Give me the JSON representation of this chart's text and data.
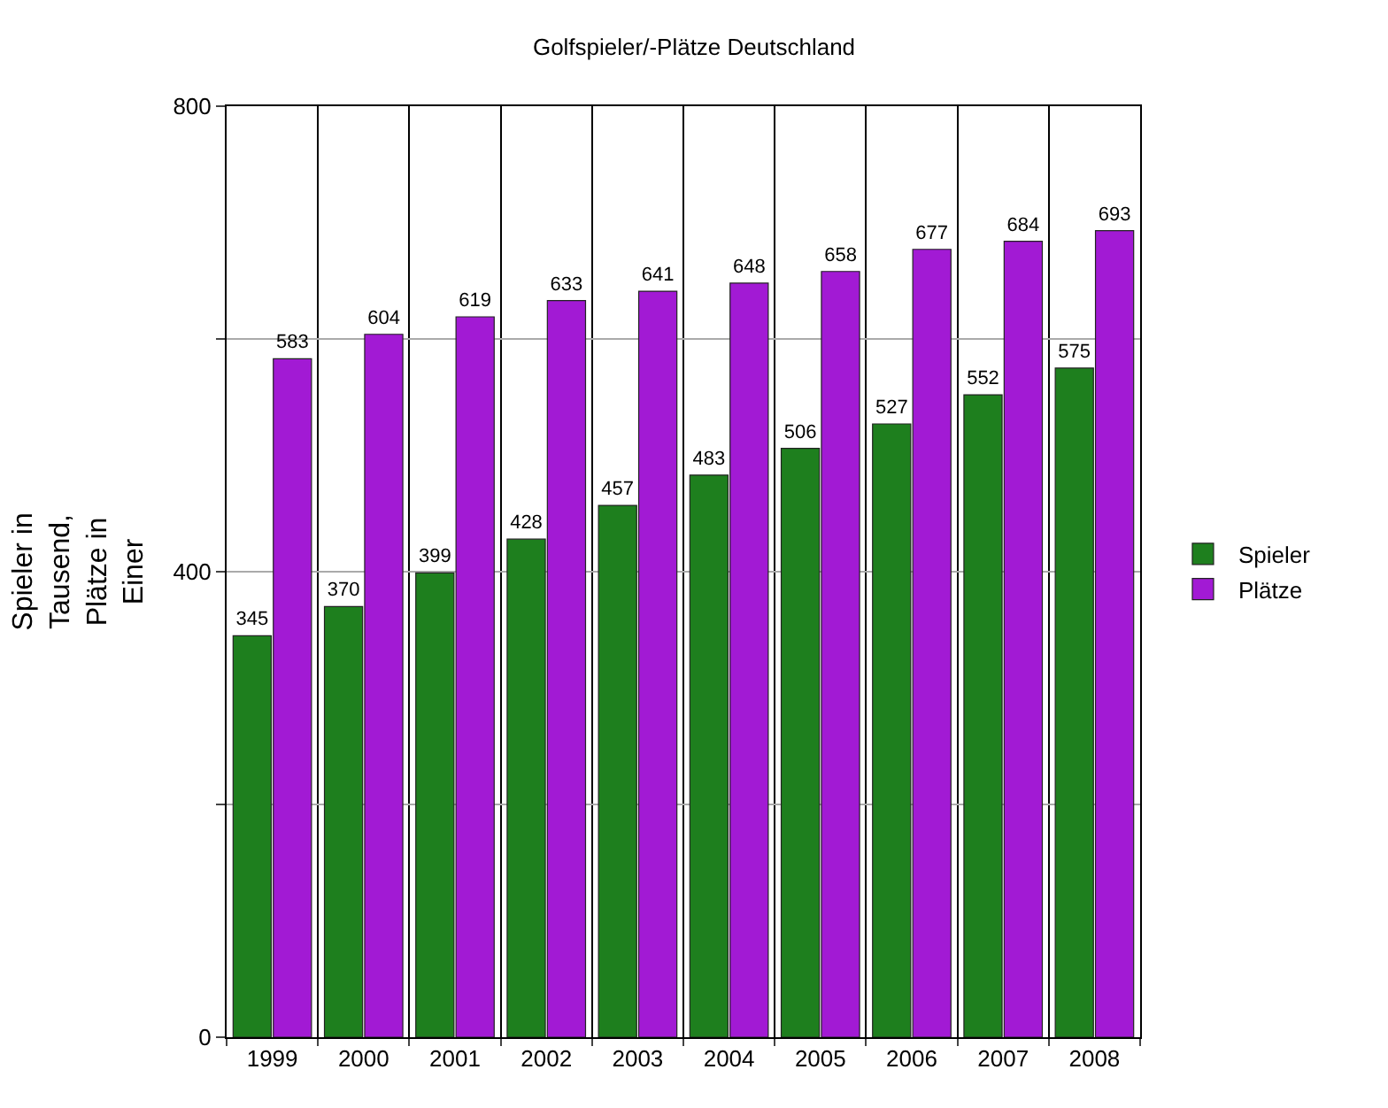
{
  "chart_data": {
    "type": "bar",
    "title": "Golfspieler/-Plätze Deutschland",
    "ylabel": "Spieler in Tausend, Plätze in Einer",
    "categories": [
      "1999",
      "2000",
      "2001",
      "2002",
      "2003",
      "2004",
      "2005",
      "2006",
      "2007",
      "2008"
    ],
    "series": [
      {
        "name": "Spieler",
        "color": "#1e7f1e",
        "values": [
          345,
          370,
          399,
          428,
          457,
          483,
          506,
          527,
          552,
          575
        ]
      },
      {
        "name": "Plätze",
        "color": "#a21ad4",
        "values": [
          583,
          604,
          619,
          633,
          641,
          648,
          658,
          677,
          684,
          693
        ]
      }
    ],
    "ylim": [
      0,
      800
    ],
    "yticks": [
      0,
      {
        "value": 200,
        "label": null
      },
      400,
      {
        "value": 600,
        "label": null
      },
      800
    ],
    "grid": true,
    "legend": "right",
    "data_labels": true
  }
}
